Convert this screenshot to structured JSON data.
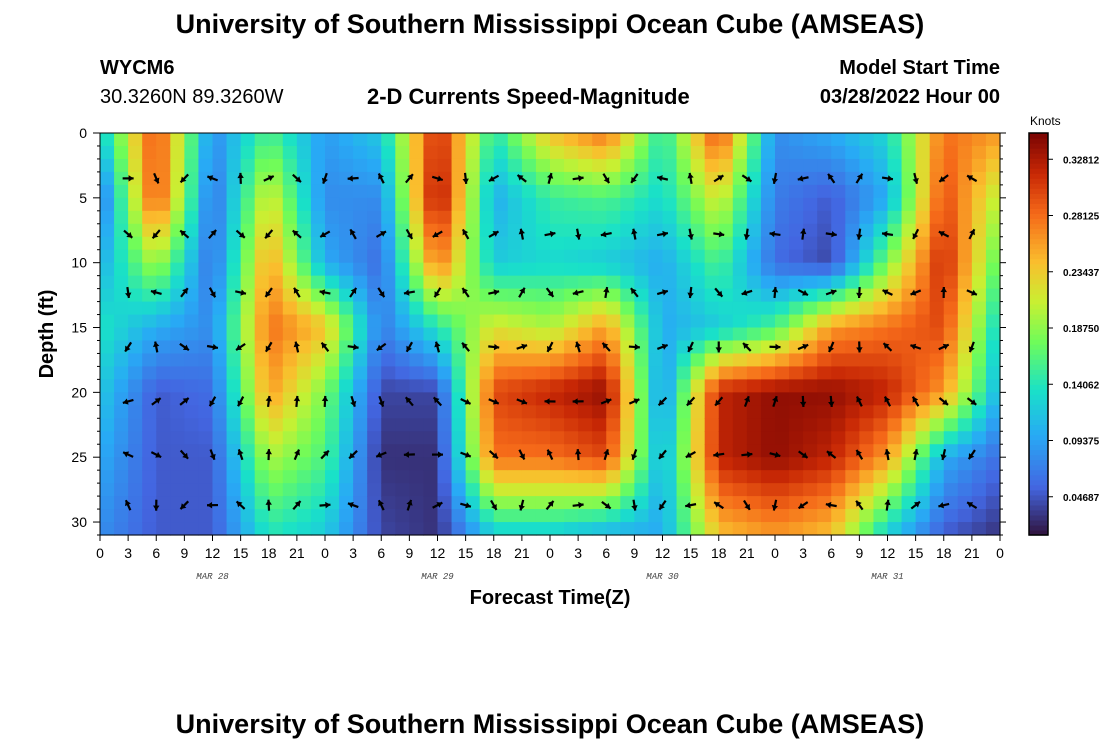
{
  "header": {
    "title": "University of Southern Mississippi Ocean Cube (AMSEAS)",
    "station": "WYCM6",
    "coords": "30.3260N  89.3260W",
    "chart_title": "2-D Currents Speed-Magnitude",
    "model_label": "Model Start Time",
    "model_time": "03/28/2022 Hour 00"
  },
  "footer": {
    "title": "University of Southern Mississippi Ocean Cube (AMSEAS)"
  },
  "chart_data": {
    "type": "heatmap",
    "title": "2-D Currents Speed-Magnitude",
    "xlabel": "Forecast Time(Z)",
    "ylabel": "Depth (ft)",
    "x_hours_range": [
      0,
      96
    ],
    "y_range": [
      0,
      31
    ],
    "x_tick_labels": [
      "0",
      "3",
      "6",
      "9",
      "12",
      "15",
      "18",
      "21",
      "0",
      "3",
      "6",
      "9",
      "12",
      "15",
      "18",
      "21",
      "0",
      "3",
      "6",
      "9",
      "12",
      "15",
      "18",
      "21",
      "0",
      "3",
      "6",
      "9",
      "12",
      "15",
      "18",
      "21",
      "0"
    ],
    "y_tick_values": [
      0,
      5,
      10,
      15,
      20,
      25,
      30
    ],
    "y_tick_labels": [
      "0",
      "5",
      "10",
      "15",
      "20",
      "25",
      "30"
    ],
    "date_labels": [
      {
        "label": "MAR 28",
        "hour": 12
      },
      {
        "label": "MAR 29",
        "hour": 36
      },
      {
        "label": "MAR 30",
        "hour": 60
      },
      {
        "label": "MAR 31",
        "hour": 84
      }
    ],
    "colorbar": {
      "units": "Knots",
      "min": 0.015,
      "max": 0.35,
      "tick_values": [
        0.04687,
        0.09375,
        0.14062,
        0.1875,
        0.23437,
        0.28125,
        0.32812
      ],
      "tick_labels": [
        "0.04687",
        "0.09375",
        "0.14062",
        "0.18750",
        "0.23437",
        "0.28125",
        "0.32812"
      ]
    },
    "arrow_hours": [
      3,
      6,
      9,
      12,
      15,
      18,
      21,
      24,
      27,
      30,
      33,
      36,
      39,
      42,
      45,
      48,
      51,
      54,
      57,
      60,
      63,
      66,
      69,
      72,
      75,
      78,
      81,
      84,
      87,
      90,
      93,
      96
    ],
    "arrow_depths": [
      3.5,
      7.8,
      12.3,
      16.5,
      20.7,
      24.8,
      28.7
    ],
    "speed_field_note": "approximate speed (knots) by forecast hour and depth, read from colors",
    "speed_grid_hours": [
      0,
      6,
      12,
      18,
      24,
      30,
      36,
      42,
      48,
      54,
      60,
      66,
      72,
      78,
      84,
      90,
      96
    ],
    "speed_grid_depths": [
      0,
      5,
      10,
      15,
      20,
      25,
      31
    ],
    "speed_grid": [
      [
        0.12,
        0.3,
        0.08,
        0.16,
        0.09,
        0.12,
        0.32,
        0.14,
        0.24,
        0.28,
        0.14,
        0.3,
        0.08,
        0.1,
        0.13,
        0.28,
        0.26
      ],
      [
        0.06,
        0.3,
        0.06,
        0.22,
        0.08,
        0.08,
        0.34,
        0.1,
        0.15,
        0.16,
        0.13,
        0.22,
        0.07,
        0.05,
        0.1,
        0.3,
        0.2
      ],
      [
        0.1,
        0.2,
        0.06,
        0.26,
        0.1,
        0.06,
        0.28,
        0.12,
        0.13,
        0.12,
        0.1,
        0.16,
        0.06,
        0.04,
        0.18,
        0.32,
        0.16
      ],
      [
        0.14,
        0.1,
        0.08,
        0.28,
        0.24,
        0.07,
        0.14,
        0.22,
        0.2,
        0.26,
        0.1,
        0.12,
        0.16,
        0.26,
        0.28,
        0.3,
        0.12
      ],
      [
        0.12,
        0.05,
        0.06,
        0.26,
        0.18,
        0.04,
        0.04,
        0.3,
        0.32,
        0.34,
        0.08,
        0.32,
        0.34,
        0.34,
        0.32,
        0.26,
        0.1
      ],
      [
        0.1,
        0.05,
        0.05,
        0.2,
        0.16,
        0.03,
        0.03,
        0.28,
        0.28,
        0.3,
        0.1,
        0.32,
        0.34,
        0.32,
        0.26,
        0.1,
        0.06
      ],
      [
        0.08,
        0.05,
        0.05,
        0.14,
        0.12,
        0.04,
        0.03,
        0.12,
        0.12,
        0.1,
        0.1,
        0.24,
        0.26,
        0.24,
        0.12,
        0.05,
        0.03
      ]
    ]
  }
}
